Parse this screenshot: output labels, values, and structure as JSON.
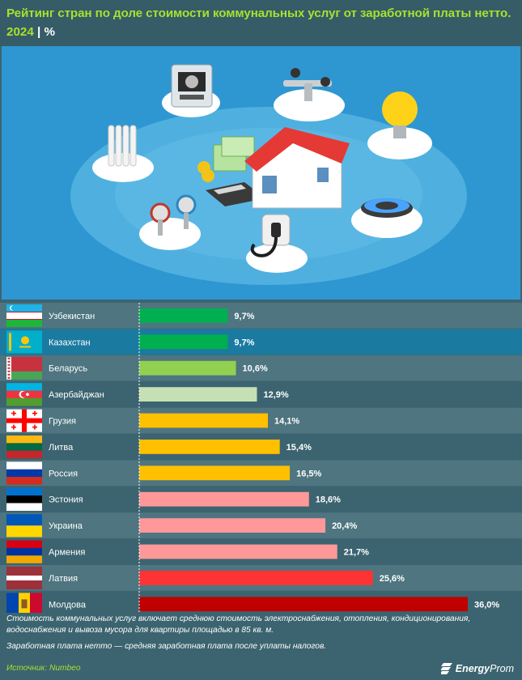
{
  "title": "Рейтинг стран по доле стоимости коммунальных услуг от заработной платы нетто.",
  "subtitle_year": "2024",
  "subtitle_sep": " | ",
  "subtitle_unit": "%",
  "colors": {
    "background": "#3c6470",
    "row_odd": "#4e7580",
    "row_highlight": "#1b7aa0",
    "accent": "#a6e22e"
  },
  "chart_data": {
    "type": "bar",
    "orientation": "horizontal",
    "unit": "%",
    "categories": [
      "Узбекистан",
      "Казахстан",
      "Беларусь",
      "Азербайджан",
      "Грузия",
      "Литва",
      "Россия",
      "Эстония",
      "Украина",
      "Армения",
      "Латвия",
      "Молдова"
    ],
    "values": [
      9.7,
      9.7,
      10.6,
      12.9,
      14.1,
      15.4,
      16.5,
      18.6,
      20.4,
      21.7,
      25.6,
      36.0
    ],
    "value_labels": [
      "9,7%",
      "9,7%",
      "10,6%",
      "12,9%",
      "14,1%",
      "15,4%",
      "16,5%",
      "18,6%",
      "20,4%",
      "21,7%",
      "25,6%",
      "36,0%"
    ],
    "bar_colors": [
      "#00b050",
      "#00b050",
      "#92d050",
      "#c5e0b4",
      "#ffc000",
      "#ffc000",
      "#ffc000",
      "#ff9999",
      "#ff9999",
      "#ff9999",
      "#ff3333",
      "#c00000"
    ],
    "highlight_category": "Казахстан",
    "xlim": [
      0,
      36.0
    ]
  },
  "flags": [
    "uzbekistan-flag",
    "kazakhstan-flag",
    "belarus-flag",
    "azerbaijan-flag",
    "georgia-flag",
    "lithuania-flag",
    "russia-flag",
    "estonia-flag",
    "ukraine-flag",
    "armenia-flag",
    "latvia-flag",
    "moldova-flag"
  ],
  "illustration_icons": [
    "electric-meter-icon",
    "water-faucet-icon",
    "light-bulb-icon",
    "radiator-icon",
    "money-stack-icon",
    "calculator-icon",
    "house-icon",
    "water-meter-icon",
    "plug-socket-icon",
    "gas-burner-icon"
  ],
  "notes": {
    "line1": "Стоимость коммунальных услуг включает среднюю стоимость электроснабжения, отопления, кондиционирования, водоснабжения и вывоза мусора для квартиры площадью в 85 кв. м.",
    "line2": "Заработная плата нетто — средняя заработная плата после уплаты налогов."
  },
  "source": "Источник: Numbeo",
  "logo": {
    "bold": "Energy",
    "light": "Prom"
  }
}
